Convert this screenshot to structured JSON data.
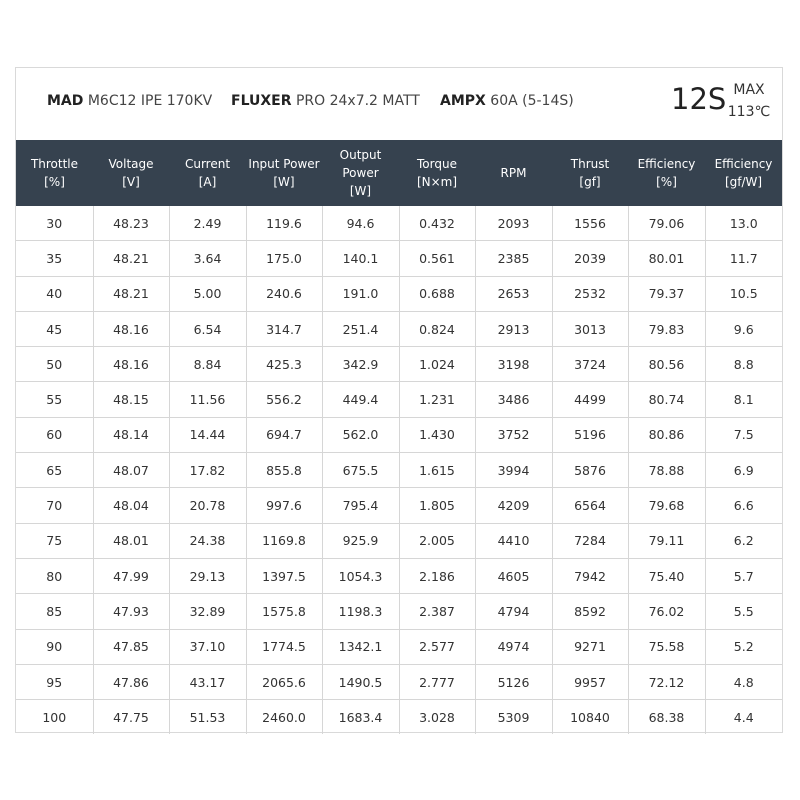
{
  "header": {
    "motor_brand": "MAD",
    "motor_model": "M6C12 IPE 170KV",
    "prop_brand": "FLUXER",
    "prop_model": "PRO 24x7.2 MATT",
    "esc_brand": "AMPX",
    "esc_model": "60A (5-14S)",
    "cells": "12S",
    "max_label": "MAX",
    "max_temp": "113℃"
  },
  "chart_data": {
    "type": "table",
    "columns": [
      {
        "label": "Throttle",
        "unit": "[%]"
      },
      {
        "label": "Voltage",
        "unit": "[V]"
      },
      {
        "label": "Current",
        "unit": "[A]"
      },
      {
        "label": "Input Power",
        "unit": "[W]"
      },
      {
        "label": "Output Power",
        "unit": "[W]"
      },
      {
        "label": "Torque",
        "unit": "[N×m]"
      },
      {
        "label": "RPM",
        "unit": ""
      },
      {
        "label": "Thrust",
        "unit": "[gf]"
      },
      {
        "label": "Efficiency",
        "unit": "[%]"
      },
      {
        "label": "Efficiency",
        "unit": "[gf/W]"
      }
    ],
    "rows": [
      [
        "30",
        "48.23",
        "2.49",
        "119.6",
        "94.6",
        "0.432",
        "2093",
        "1556",
        "79.06",
        "13.0"
      ],
      [
        "35",
        "48.21",
        "3.64",
        "175.0",
        "140.1",
        "0.561",
        "2385",
        "2039",
        "80.01",
        "11.7"
      ],
      [
        "40",
        "48.21",
        "5.00",
        "240.6",
        "191.0",
        "0.688",
        "2653",
        "2532",
        "79.37",
        "10.5"
      ],
      [
        "45",
        "48.16",
        "6.54",
        "314.7",
        "251.4",
        "0.824",
        "2913",
        "3013",
        "79.83",
        "9.6"
      ],
      [
        "50",
        "48.16",
        "8.84",
        "425.3",
        "342.9",
        "1.024",
        "3198",
        "3724",
        "80.56",
        "8.8"
      ],
      [
        "55",
        "48.15",
        "11.56",
        "556.2",
        "449.4",
        "1.231",
        "3486",
        "4499",
        "80.74",
        "8.1"
      ],
      [
        "60",
        "48.14",
        "14.44",
        "694.7",
        "562.0",
        "1.430",
        "3752",
        "5196",
        "80.86",
        "7.5"
      ],
      [
        "65",
        "48.07",
        "17.82",
        "855.8",
        "675.5",
        "1.615",
        "3994",
        "5876",
        "78.88",
        "6.9"
      ],
      [
        "70",
        "48.04",
        "20.78",
        "997.6",
        "795.4",
        "1.805",
        "4209",
        "6564",
        "79.68",
        "6.6"
      ],
      [
        "75",
        "48.01",
        "24.38",
        "1169.8",
        "925.9",
        "2.005",
        "4410",
        "7284",
        "79.11",
        "6.2"
      ],
      [
        "80",
        "47.99",
        "29.13",
        "1397.5",
        "1054.3",
        "2.186",
        "4605",
        "7942",
        "75.40",
        "5.7"
      ],
      [
        "85",
        "47.93",
        "32.89",
        "1575.8",
        "1198.3",
        "2.387",
        "4794",
        "8592",
        "76.02",
        "5.5"
      ],
      [
        "90",
        "47.85",
        "37.10",
        "1774.5",
        "1342.1",
        "2.577",
        "4974",
        "9271",
        "75.58",
        "5.2"
      ],
      [
        "95",
        "47.86",
        "43.17",
        "2065.6",
        "1490.5",
        "2.777",
        "5126",
        "9957",
        "72.12",
        "4.8"
      ],
      [
        "100",
        "47.75",
        "51.53",
        "2460.0",
        "1683.4",
        "3.028",
        "5309",
        "10840",
        "68.38",
        "4.4"
      ]
    ]
  }
}
